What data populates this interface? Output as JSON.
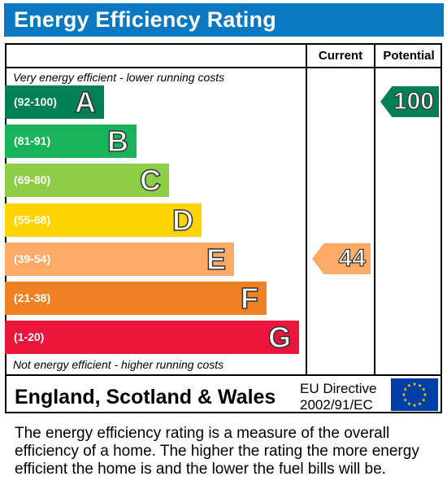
{
  "title": "Energy Efficiency Rating",
  "columns": {
    "current": "Current",
    "potential": "Potential"
  },
  "top_note": "Very energy efficient - lower running costs",
  "bottom_note": "Not energy efficient - higher running costs",
  "bands": [
    {
      "letter": "A",
      "range": "(92-100)",
      "color": "#008054"
    },
    {
      "letter": "B",
      "range": "(81-91)",
      "color": "#19b459"
    },
    {
      "letter": "C",
      "range": "(69-80)",
      "color": "#8dce46"
    },
    {
      "letter": "D",
      "range": "(55-68)",
      "color": "#ffd500"
    },
    {
      "letter": "E",
      "range": "(39-54)",
      "color": "#fcaa65"
    },
    {
      "letter": "F",
      "range": "(21-38)",
      "color": "#ef8023"
    },
    {
      "letter": "G",
      "range": "(1-20)",
      "color": "#e9153b"
    }
  ],
  "current": {
    "value": "44",
    "band": "E",
    "color": "#fcaa65"
  },
  "potential": {
    "value": "100",
    "band": "A",
    "color": "#008054"
  },
  "region": "England, Scotland & Wales",
  "directive": {
    "line1": "EU Directive",
    "line2": "2002/91/EC"
  },
  "flag_icon": "eu-flag-icon",
  "description": "The energy efficiency rating is a measure of the overall efficiency of a home. The higher the rating the more energy efficient the home is and the lower the fuel bills will be."
}
